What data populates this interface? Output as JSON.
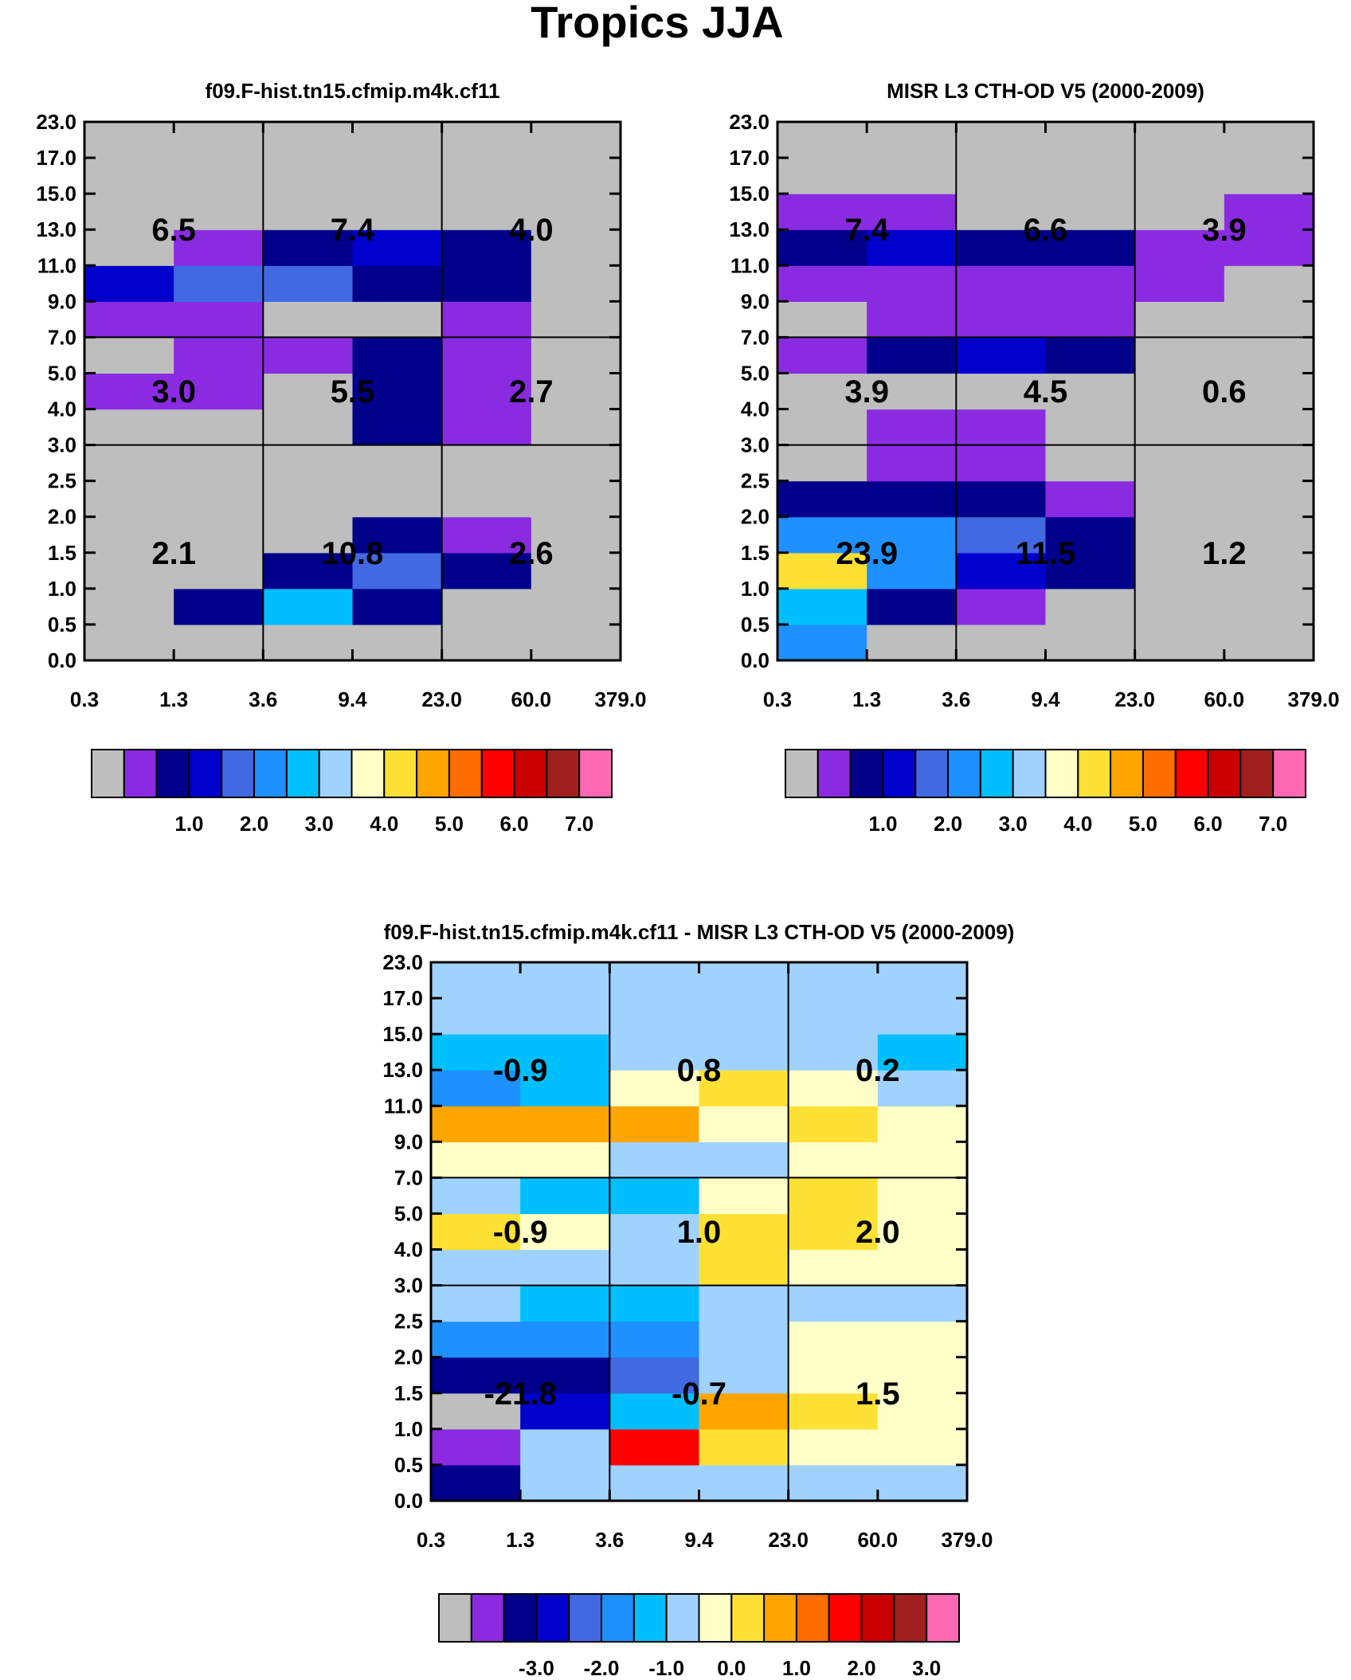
{
  "title": "Tropics JJA",
  "colors": [
    "#bebebe",
    "#8a2be2",
    "#00008b",
    "#0000cd",
    "#4169e1",
    "#1e90ff",
    "#00bfff",
    "#a0d2ff",
    "#ffffc8",
    "#ffe135",
    "#ffa500",
    "#ff6c00",
    "#ff0000",
    "#c80000",
    "#a02020",
    "#ff69b4"
  ],
  "chart_data": [
    {
      "type": "heatmap",
      "title": "f09.F-hist.tn15.cfmip.m4k.cf11",
      "x_ticks": [
        "0.3",
        "1.3",
        "3.6",
        "9.4",
        "23.0",
        "60.0",
        "379.0"
      ],
      "y_ticks": [
        "0.0",
        "0.5",
        "1.0",
        "1.5",
        "2.0",
        "2.5",
        "3.0",
        "4.0",
        "5.0",
        "7.0",
        "9.0",
        "11.0",
        "13.0",
        "15.0",
        "17.0",
        "23.0"
      ],
      "cells": [
        [
          0,
          0,
          0,
          0,
          0,
          0
        ],
        [
          0,
          2,
          6,
          2,
          0,
          0
        ],
        [
          0,
          0,
          2,
          4,
          2,
          0
        ],
        [
          0,
          0,
          0,
          2,
          1,
          0
        ],
        [
          0,
          0,
          0,
          0,
          0,
          0
        ],
        [
          0,
          0,
          0,
          0,
          0,
          0
        ],
        [
          0,
          0,
          0,
          2,
          1,
          0
        ],
        [
          1,
          1,
          0,
          2,
          1,
          0
        ],
        [
          0,
          1,
          1,
          2,
          1,
          0
        ],
        [
          1,
          1,
          0,
          0,
          1,
          0
        ],
        [
          3,
          4,
          4,
          2,
          2,
          0
        ],
        [
          0,
          1,
          2,
          3,
          2,
          0
        ],
        [
          0,
          0,
          0,
          0,
          0,
          0
        ],
        [
          0,
          0,
          0,
          0,
          0,
          0
        ],
        [
          0,
          0,
          0,
          0,
          0,
          0
        ]
      ],
      "box_values": [
        [
          "6.5",
          "7.4",
          "4.0"
        ],
        [
          "3.0",
          "5.5",
          "2.7"
        ],
        [
          "2.1",
          "10.8",
          "2.6"
        ]
      ],
      "colorbar_labels": [
        "1.0",
        "2.0",
        "3.0",
        "4.0",
        "5.0",
        "6.0",
        "7.0"
      ]
    },
    {
      "type": "heatmap",
      "title": "MISR L3 CTH-OD V5 (2000-2009)",
      "x_ticks": [
        "0.3",
        "1.3",
        "3.6",
        "9.4",
        "23.0",
        "60.0",
        "379.0"
      ],
      "y_ticks": [
        "0.0",
        "0.5",
        "1.0",
        "1.5",
        "2.0",
        "2.5",
        "3.0",
        "4.0",
        "5.0",
        "7.0",
        "9.0",
        "11.0",
        "13.0",
        "15.0",
        "17.0",
        "23.0"
      ],
      "cells": [
        [
          5,
          0,
          0,
          0,
          0,
          0
        ],
        [
          6,
          2,
          1,
          0,
          0,
          0
        ],
        [
          9,
          5,
          3,
          2,
          0,
          0
        ],
        [
          5,
          5,
          4,
          2,
          0,
          0
        ],
        [
          2,
          2,
          2,
          1,
          0,
          0
        ],
        [
          0,
          1,
          1,
          0,
          0,
          0
        ],
        [
          0,
          1,
          1,
          0,
          0,
          0
        ],
        [
          0,
          0,
          0,
          0,
          0,
          0
        ],
        [
          1,
          2,
          3,
          2,
          0,
          0
        ],
        [
          0,
          1,
          1,
          1,
          0,
          0
        ],
        [
          1,
          1,
          1,
          1,
          1,
          0
        ],
        [
          2,
          3,
          2,
          2,
          1,
          1
        ],
        [
          1,
          1,
          0,
          0,
          0,
          1
        ],
        [
          0,
          0,
          0,
          0,
          0,
          0
        ],
        [
          0,
          0,
          0,
          0,
          0,
          0
        ]
      ],
      "box_values": [
        [
          "7.4",
          "6.6",
          "3.9"
        ],
        [
          "3.9",
          "4.5",
          "0.6"
        ],
        [
          "23.9",
          "11.5",
          "1.2"
        ]
      ],
      "colorbar_labels": [
        "1.0",
        "2.0",
        "3.0",
        "4.0",
        "5.0",
        "6.0",
        "7.0"
      ]
    },
    {
      "type": "heatmap",
      "title": "f09.F-hist.tn15.cfmip.m4k.cf11 - MISR L3 CTH-OD V5 (2000-2009)",
      "x_ticks": [
        "0.3",
        "1.3",
        "3.6",
        "9.4",
        "23.0",
        "60.0",
        "379.0"
      ],
      "y_ticks": [
        "0.0",
        "0.5",
        "1.0",
        "1.5",
        "2.0",
        "2.5",
        "3.0",
        "4.0",
        "5.0",
        "7.0",
        "9.0",
        "11.0",
        "13.0",
        "15.0",
        "17.0",
        "23.0"
      ],
      "cells": [
        [
          2,
          7,
          7,
          7,
          7,
          7
        ],
        [
          1,
          7,
          12,
          9,
          8,
          8
        ],
        [
          0,
          3,
          6,
          10,
          9,
          8
        ],
        [
          2,
          2,
          4,
          7,
          8,
          8
        ],
        [
          5,
          5,
          5,
          7,
          8,
          8
        ],
        [
          7,
          6,
          6,
          7,
          7,
          7
        ],
        [
          7,
          7,
          7,
          9,
          8,
          8
        ],
        [
          9,
          8,
          7,
          9,
          9,
          8
        ],
        [
          7,
          6,
          6,
          8,
          9,
          8
        ],
        [
          8,
          8,
          7,
          7,
          8,
          8
        ],
        [
          10,
          10,
          10,
          8,
          9,
          8
        ],
        [
          5,
          6,
          8,
          9,
          8,
          7
        ],
        [
          6,
          6,
          7,
          7,
          7,
          6
        ],
        [
          7,
          7,
          7,
          7,
          7,
          7
        ],
        [
          7,
          7,
          7,
          7,
          7,
          7
        ]
      ],
      "box_values": [
        [
          "-0.9",
          "0.8",
          "0.2"
        ],
        [
          "-0.9",
          "1.0",
          "2.0"
        ],
        [
          "-21.8",
          "-0.7",
          "1.5"
        ]
      ],
      "colorbar_labels": [
        "-3.0",
        "-2.0",
        "-1.0",
        "0.0",
        "1.0",
        "2.0",
        "3.0"
      ]
    }
  ]
}
